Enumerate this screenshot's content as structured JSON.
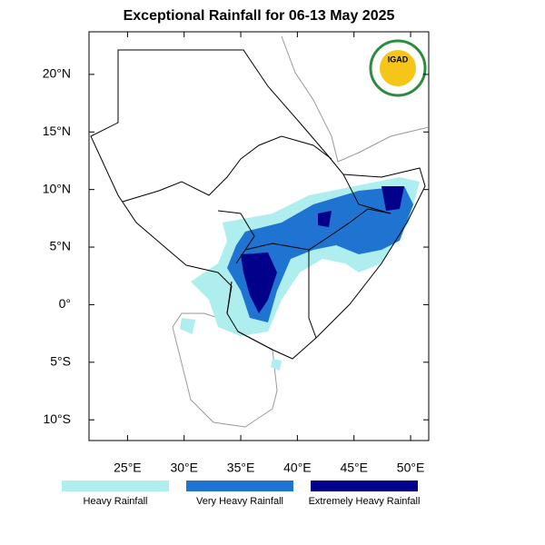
{
  "chart_data": {
    "type": "map",
    "title": "Exceptional Rainfall for 06-13 May 2025",
    "logo_text": "IGAD",
    "xlim": [
      21.6,
      51.6
    ],
    "ylim": [
      -11.8,
      23.7
    ],
    "xticks": [
      {
        "value": 25,
        "label": "25°E"
      },
      {
        "value": 30,
        "label": "30°E"
      },
      {
        "value": 35,
        "label": "35°E"
      },
      {
        "value": 40,
        "label": "40°E"
      },
      {
        "value": 45,
        "label": "45°E"
      },
      {
        "value": 50,
        "label": "50°E"
      }
    ],
    "yticks": [
      {
        "value": 20,
        "label": "20°N"
      },
      {
        "value": 15,
        "label": "15°N"
      },
      {
        "value": 10,
        "label": "10°N"
      },
      {
        "value": 5,
        "label": "5°N"
      },
      {
        "value": 0,
        "label": "0°"
      },
      {
        "value": -5,
        "label": "5°S"
      },
      {
        "value": -10,
        "label": "10°S"
      }
    ],
    "legend": [
      {
        "name": "Heavy Rainfall",
        "color": "#aeeeee"
      },
      {
        "name": "Very Heavy Rainfall",
        "color": "#1e74d0"
      },
      {
        "name": "Extremely Heavy Rainfall",
        "color": "#00008b"
      }
    ]
  }
}
